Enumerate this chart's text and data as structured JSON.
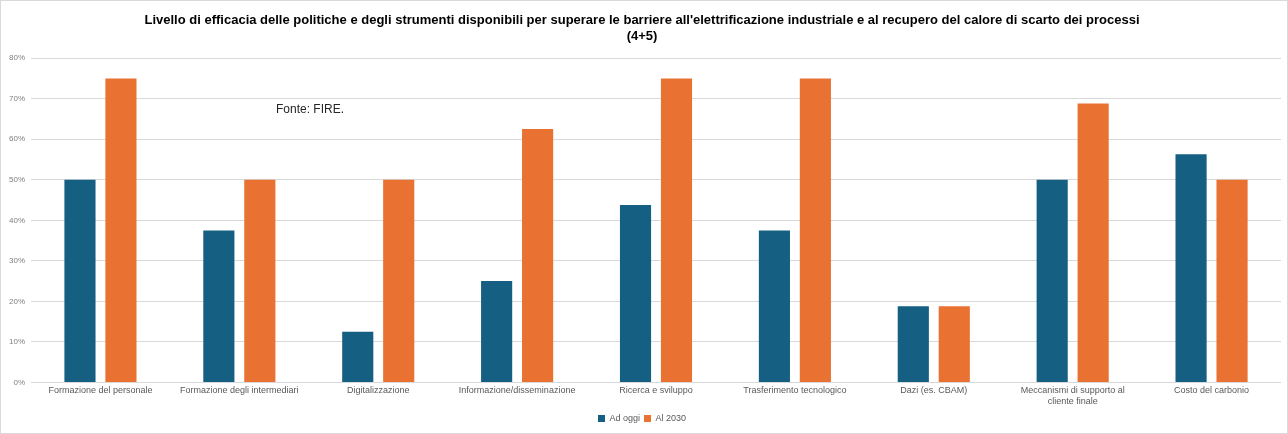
{
  "chart_data": {
    "type": "bar",
    "title": "Livello di efficacia delle politiche e degli strumenti disponibili per superare le barriere all'elettrificazione industriale e al recupero del calore di scarto dei processi (4+5)",
    "categories": [
      "Formazione del personale",
      "Formazione degli intermediari",
      "Digitalizzazione",
      "Informazione/disseminazione",
      "Ricerca e sviluppo",
      "Trasferimento tecnologico",
      "Dazi (es. CBAM)",
      "Meccanismi di supporto al cliente finale",
      "Costo del carbonio"
    ],
    "series": [
      {
        "name": "Ad oggi",
        "color": "#156082",
        "values": [
          50,
          37.5,
          12.5,
          25,
          43.8,
          37.5,
          18.8,
          50,
          56.3
        ]
      },
      {
        "name": "Al 2030",
        "color": "#e97132",
        "values": [
          75,
          50,
          50,
          62.5,
          75,
          75,
          18.8,
          68.8,
          50
        ]
      }
    ],
    "ylim": [
      0,
      80
    ],
    "yticks": [
      {
        "value": 0,
        "label": "0%"
      },
      {
        "value": 10,
        "label": "10%"
      },
      {
        "value": 20,
        "label": "20%"
      },
      {
        "value": 30,
        "label": "30%"
      },
      {
        "value": 40,
        "label": "40%"
      },
      {
        "value": 50,
        "label": "50%"
      },
      {
        "value": 60,
        "label": "60%"
      },
      {
        "value": 70,
        "label": "70%"
      },
      {
        "value": 80,
        "label": "80%"
      }
    ],
    "grid": "y",
    "legend": "bottom",
    "annotations": [
      "Fonte: FIRE."
    ]
  }
}
